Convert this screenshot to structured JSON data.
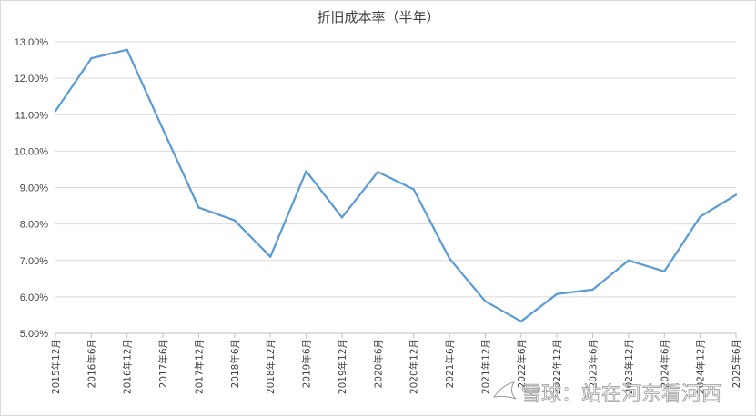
{
  "chart_data": {
    "type": "line",
    "title": "折旧成本率（半年）",
    "xlabel": "",
    "ylabel": "",
    "categories": [
      "2015年12月",
      "2016年6月",
      "2016年12月",
      "2017年6月",
      "2017年12月",
      "2018年6月",
      "2018年12月",
      "2019年6月",
      "2019年12月",
      "2020年6月",
      "2020年12月",
      "2021年6月",
      "2021年12月",
      "2022年6月",
      "2022年12月",
      "2023年6月",
      "2023年12月",
      "2024年6月",
      "2024年12月",
      "2025年6月"
    ],
    "series": [
      {
        "values": [
          11.1,
          12.55,
          12.78,
          10.6,
          8.45,
          8.1,
          7.1,
          9.45,
          8.18,
          9.43,
          8.95,
          7.05,
          5.88,
          5.33,
          6.08,
          6.2,
          7.0,
          6.7,
          8.2,
          8.8
        ]
      }
    ],
    "ylim": [
      5.0,
      13.0
    ],
    "yticks": [
      "5.00%",
      "6.00%",
      "7.00%",
      "8.00%",
      "9.00%",
      "10.00%",
      "11.00%",
      "12.00%",
      "13.00%"
    ],
    "grid": true,
    "line_color": "#5b9bd5",
    "grid_color": "#d9d9d9"
  },
  "watermark": {
    "icon": "xueqiu-logo-icon",
    "text": "雪球：站在河东看河西"
  }
}
